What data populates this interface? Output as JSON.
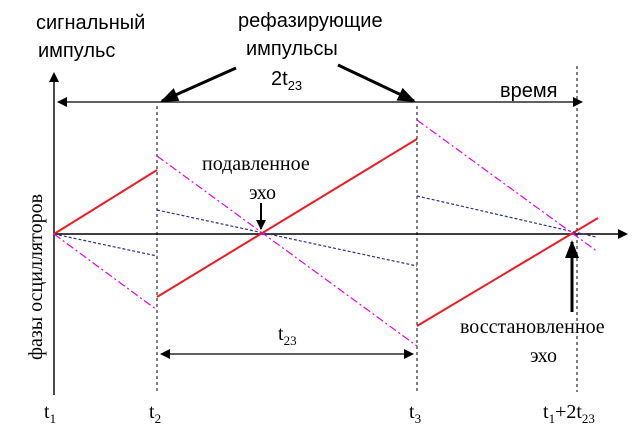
{
  "labels": {
    "signal_pulse_line1": "сигнальный",
    "signal_pulse_line2": "импульс",
    "refocus_line1": "рефазирующие",
    "refocus_line2": "импульсы",
    "interval_2t23_main": "2t",
    "interval_2t23_sub": "23",
    "time": "время",
    "y_axis": "фазы осцилляторов",
    "suppressed_line1": "подавленное",
    "suppressed_line2": "эхо",
    "interval_t23_main": "t",
    "interval_t23_sub": "23",
    "restored_line1": "восстановленное",
    "restored_line2": "эхо"
  },
  "ticks": {
    "t1_main": "t",
    "t1_sub": "1",
    "t2_main": "t",
    "t2_sub": "2",
    "t3_main": "t",
    "t3_sub": "3",
    "t4_main": "t",
    "t4_sub": "1",
    "t4_mid": "+2t",
    "t4_sub2": "23"
  },
  "colors": {
    "red": "#ee1c24",
    "blue": "#2e3192",
    "magenta": "#ec00ec",
    "axis": "#000000"
  }
}
